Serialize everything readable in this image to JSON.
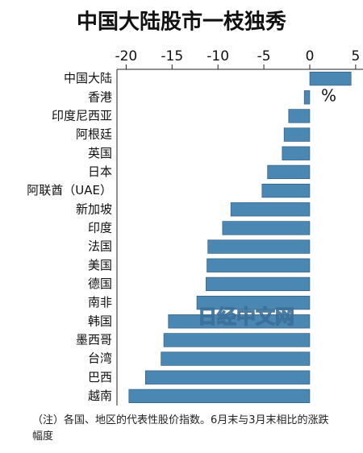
{
  "chart_data": {
    "type": "bar",
    "orientation": "horizontal",
    "title": "中国大陆股市一枝独秀",
    "unit_label": "%",
    "watermark": "日经中文网",
    "note": "（注）各国、地区的代表性股价指数。6月末与3月末相比的涨跌幅度",
    "categories": [
      "中国大陆",
      "香港",
      "印度尼西亚",
      "阿根廷",
      "英国",
      "日本",
      "阿联酋（UAE）",
      "新加坡",
      "印度",
      "法国",
      "美国",
      "德国",
      "南非",
      "韩国",
      "墨西哥",
      "台湾",
      "巴西",
      "越南"
    ],
    "values": [
      4.5,
      -0.6,
      -2.3,
      -2.8,
      -3.0,
      -4.6,
      -5.2,
      -8.6,
      -9.5,
      -11.1,
      -11.2,
      -11.3,
      -12.3,
      -15.4,
      -15.9,
      -16.2,
      -17.9,
      -19.7
    ],
    "color": "#4a87b2",
    "xlim": [
      -21,
      5.8
    ],
    "xticks": [
      -20,
      -15,
      -10,
      -5,
      0,
      5
    ]
  }
}
